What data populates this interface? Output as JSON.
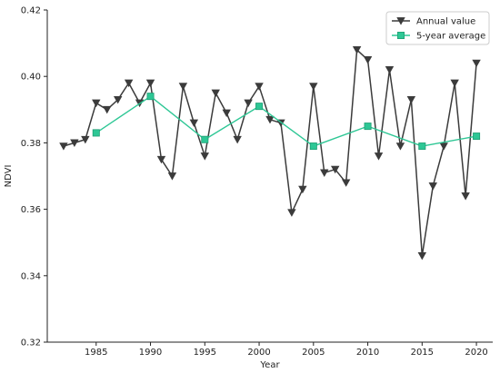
{
  "chart_data": {
    "type": "line",
    "title": "",
    "xlabel": "Year",
    "ylabel": "NDVI",
    "xlim": [
      1980.5,
      2021.5
    ],
    "ylim": [
      0.32,
      0.42
    ],
    "x_ticks": [
      1985,
      1990,
      1995,
      2000,
      2005,
      2010,
      2015,
      2020
    ],
    "y_ticks": [
      0.32,
      0.34,
      0.36,
      0.38,
      0.4,
      0.42
    ],
    "y_tick_labels": [
      "0.32",
      "0.34",
      "0.36",
      "0.38",
      "0.40",
      "0.42"
    ],
    "grid": false,
    "legend_position": "top-right",
    "series": [
      {
        "name": "Annual value",
        "color": "#3b3b3b",
        "marker": "triangle-down",
        "x": [
          1982,
          1983,
          1984,
          1985,
          1986,
          1987,
          1988,
          1989,
          1990,
          1991,
          1992,
          1993,
          1994,
          1995,
          1996,
          1997,
          1998,
          1999,
          2000,
          2001,
          2002,
          2003,
          2004,
          2005,
          2006,
          2007,
          2008,
          2009,
          2010,
          2011,
          2012,
          2013,
          2014,
          2015,
          2016,
          2017,
          2018,
          2019,
          2020
        ],
        "values": [
          0.379,
          0.38,
          0.381,
          0.392,
          0.39,
          0.393,
          0.398,
          0.392,
          0.398,
          0.375,
          0.37,
          0.397,
          0.386,
          0.376,
          0.395,
          0.389,
          0.381,
          0.392,
          0.397,
          0.387,
          0.386,
          0.359,
          0.366,
          0.397,
          0.371,
          0.372,
          0.368,
          0.408,
          0.405,
          0.376,
          0.402,
          0.379,
          0.393,
          0.346,
          0.367,
          0.379,
          0.398,
          0.364,
          0.404
        ]
      },
      {
        "name": "5-year average",
        "color": "#2ec795",
        "marker": "square",
        "x": [
          1985,
          1990,
          1995,
          2000,
          2005,
          2010,
          2015,
          2020
        ],
        "values": [
          0.383,
          0.394,
          0.381,
          0.391,
          0.379,
          0.385,
          0.379,
          0.382
        ]
      }
    ]
  }
}
